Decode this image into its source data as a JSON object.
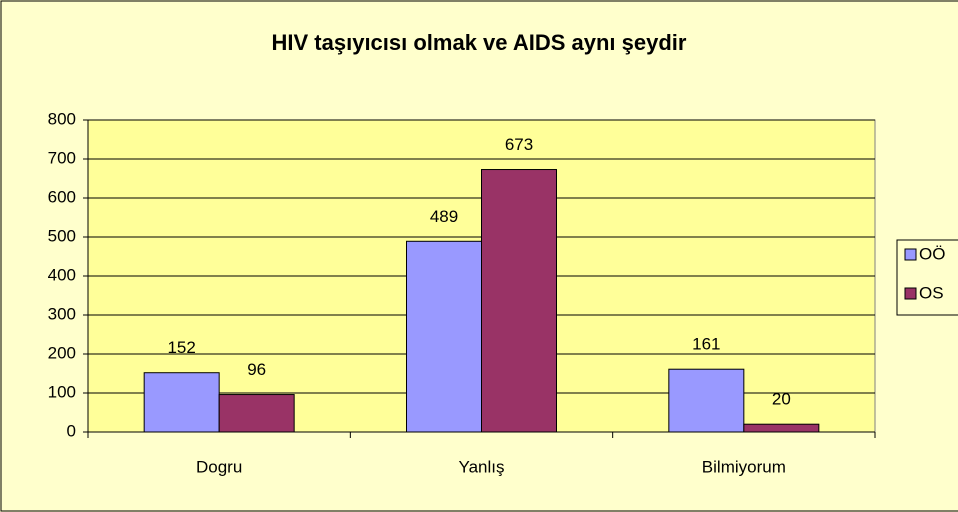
{
  "chart_data": {
    "type": "bar",
    "title": "HIV taşıyıcısı olmak ve AIDS aynı şeydir",
    "categories": [
      "Dogru",
      "Yanlış",
      "Bilmiyorum"
    ],
    "series": [
      {
        "name": "OÖ",
        "color": "#9999ff",
        "values": [
          152,
          489,
          161
        ]
      },
      {
        "name": "OS",
        "color": "#993366",
        "values": [
          96,
          673,
          20
        ]
      }
    ],
    "ylim": [
      0,
      800
    ],
    "yticks": [
      0,
      100,
      200,
      300,
      400,
      500,
      600,
      700,
      800
    ],
    "grid": true,
    "legend": "right",
    "plot_background": "#ffff99"
  }
}
